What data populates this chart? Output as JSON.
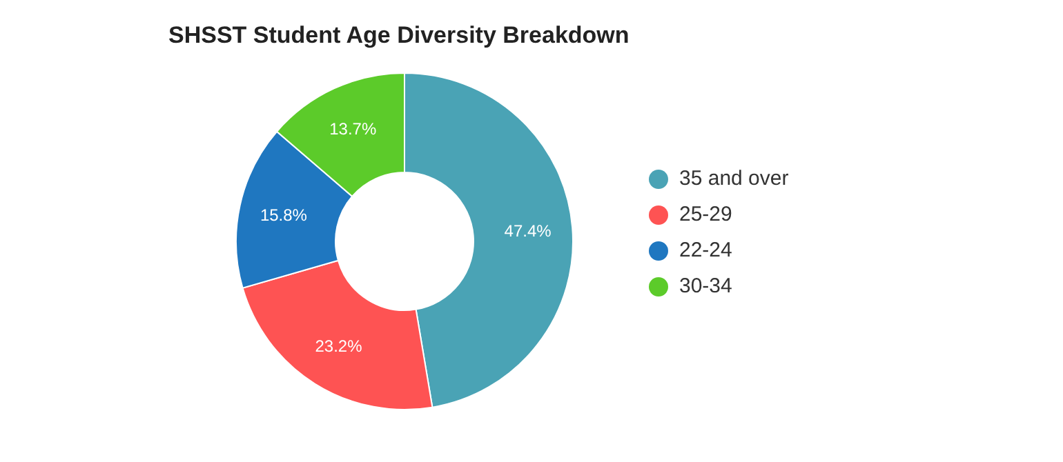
{
  "chart_data": {
    "type": "donut",
    "title": "SHSST Student Age Diversity Breakdown",
    "categories": [
      "35 and over",
      "25-29",
      "22-24",
      "30-34"
    ],
    "values": [
      47.4,
      23.2,
      15.8,
      13.7
    ],
    "colors": [
      "#4aa3b5",
      "#fe5353",
      "#1f77c0",
      "#5ccb2a"
    ],
    "value_labels": [
      "47.4%",
      "23.2%",
      "15.8%",
      "13.7%"
    ],
    "legend": "right"
  }
}
